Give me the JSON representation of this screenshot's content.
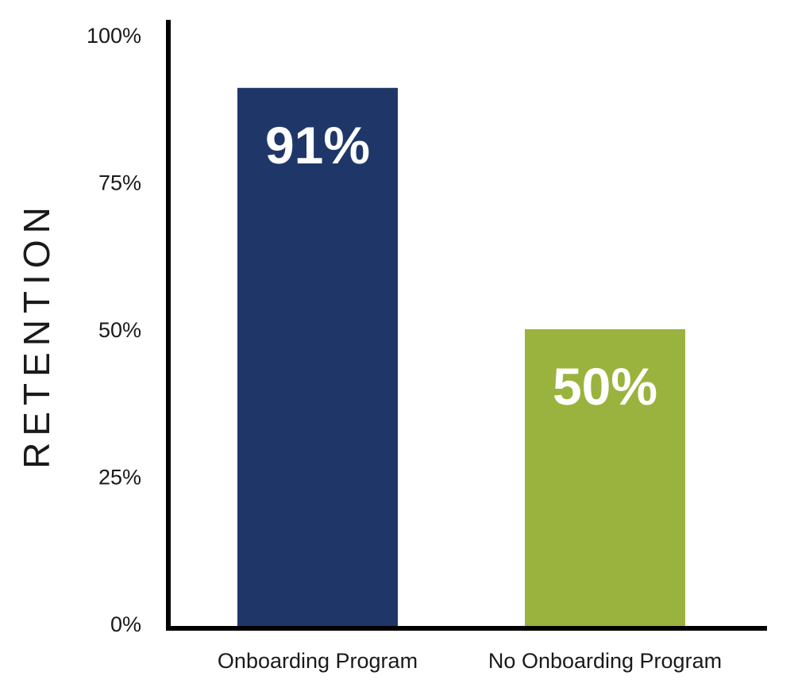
{
  "chart_data": {
    "type": "bar",
    "ylabel": "RETENTION",
    "ylim": [
      0,
      100
    ],
    "yticks": [
      "0%",
      "25%",
      "50%",
      "75%",
      "100%"
    ],
    "categories": [
      "Onboarding Program",
      "No Onboarding Program"
    ],
    "values": [
      91,
      50
    ],
    "data_labels": [
      "91%",
      "50%"
    ],
    "colors": [
      "#1f3768",
      "#9ab33e"
    ],
    "grid": false,
    "legend": "none"
  }
}
